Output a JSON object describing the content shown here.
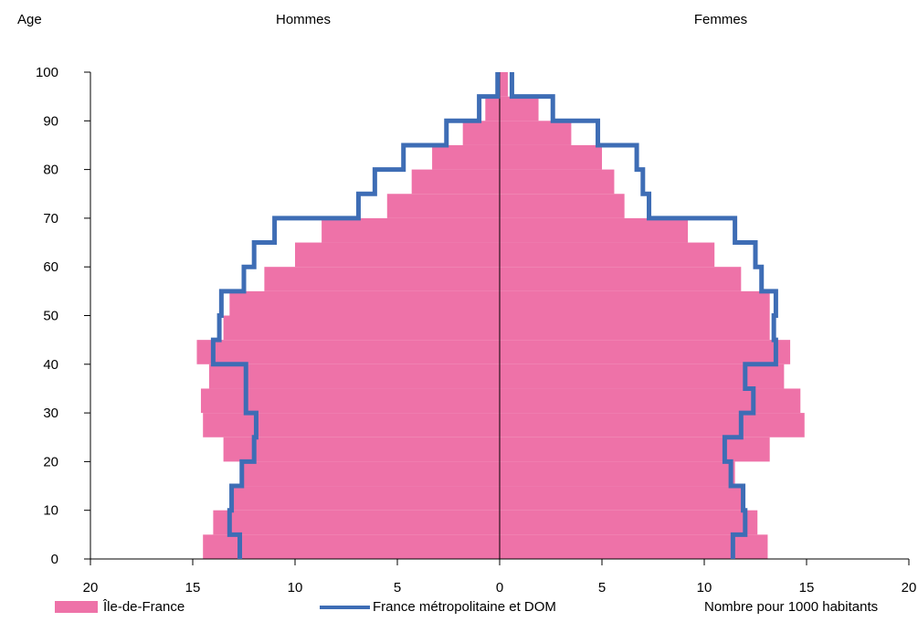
{
  "colors": {
    "idf": "#EE72A8",
    "france": "#3E6DB5",
    "title": "#E5322D"
  },
  "legend": {
    "idf": "Île-de-France",
    "france": "France métropolitaine et DOM",
    "unit": "Nombre pour 1000 habitants"
  },
  "chart_data": {
    "type": "bar",
    "orientation": "horizontal-pyramid",
    "title": "",
    "ylabel": "Age",
    "left_header": "Hommes",
    "right_header": "Femmes",
    "xlabel": "Nombre pour 1000 habitants",
    "xlim": [
      -20,
      20
    ],
    "ylim": [
      0,
      100
    ],
    "x_ticks": [
      -20,
      -15,
      -10,
      -5,
      0,
      5,
      10,
      15,
      20
    ],
    "x_tick_labels": [
      "20",
      "15",
      "10",
      "5",
      "0",
      "5",
      "10",
      "15",
      "20"
    ],
    "y_ticks": [
      0,
      10,
      20,
      30,
      40,
      50,
      60,
      70,
      80,
      90,
      100
    ],
    "age_bands": [
      [
        0,
        5
      ],
      [
        5,
        10
      ],
      [
        10,
        15
      ],
      [
        15,
        20
      ],
      [
        20,
        25
      ],
      [
        25,
        30
      ],
      [
        30,
        35
      ],
      [
        35,
        40
      ],
      [
        40,
        45
      ],
      [
        45,
        50
      ],
      [
        50,
        55
      ],
      [
        55,
        60
      ],
      [
        60,
        65
      ],
      [
        65,
        70
      ],
      [
        70,
        75
      ],
      [
        75,
        80
      ],
      [
        80,
        85
      ],
      [
        85,
        90
      ],
      [
        90,
        95
      ],
      [
        95,
        100
      ]
    ],
    "series": [
      {
        "name": "Île-de-France",
        "kind": "bars",
        "hommes": [
          14.5,
          14.0,
          13.0,
          12.5,
          13.5,
          14.5,
          14.6,
          14.2,
          14.8,
          13.5,
          13.2,
          11.5,
          10.0,
          8.7,
          5.5,
          4.3,
          3.3,
          1.8,
          0.7,
          0.2
        ],
        "femmes": [
          13.1,
          12.6,
          12.0,
          11.5,
          13.2,
          14.9,
          14.7,
          13.9,
          14.2,
          13.2,
          13.2,
          11.8,
          10.5,
          9.2,
          6.1,
          5.6,
          5.0,
          3.5,
          1.9,
          0.4
        ]
      },
      {
        "name": "France métropolitaine et DOM",
        "kind": "step-line",
        "hommes": [
          12.7,
          13.2,
          13.1,
          12.6,
          12.0,
          11.9,
          12.4,
          12.4,
          14.0,
          13.7,
          13.6,
          12.5,
          12.0,
          11.0,
          6.9,
          6.1,
          4.7,
          2.6,
          1.0,
          0.1
        ],
        "femmes": [
          11.4,
          12.0,
          11.9,
          11.3,
          11.0,
          11.8,
          12.4,
          12.0,
          13.5,
          13.4,
          13.5,
          12.8,
          12.5,
          11.5,
          7.3,
          7.0,
          6.7,
          4.8,
          2.6,
          0.6
        ]
      }
    ]
  }
}
